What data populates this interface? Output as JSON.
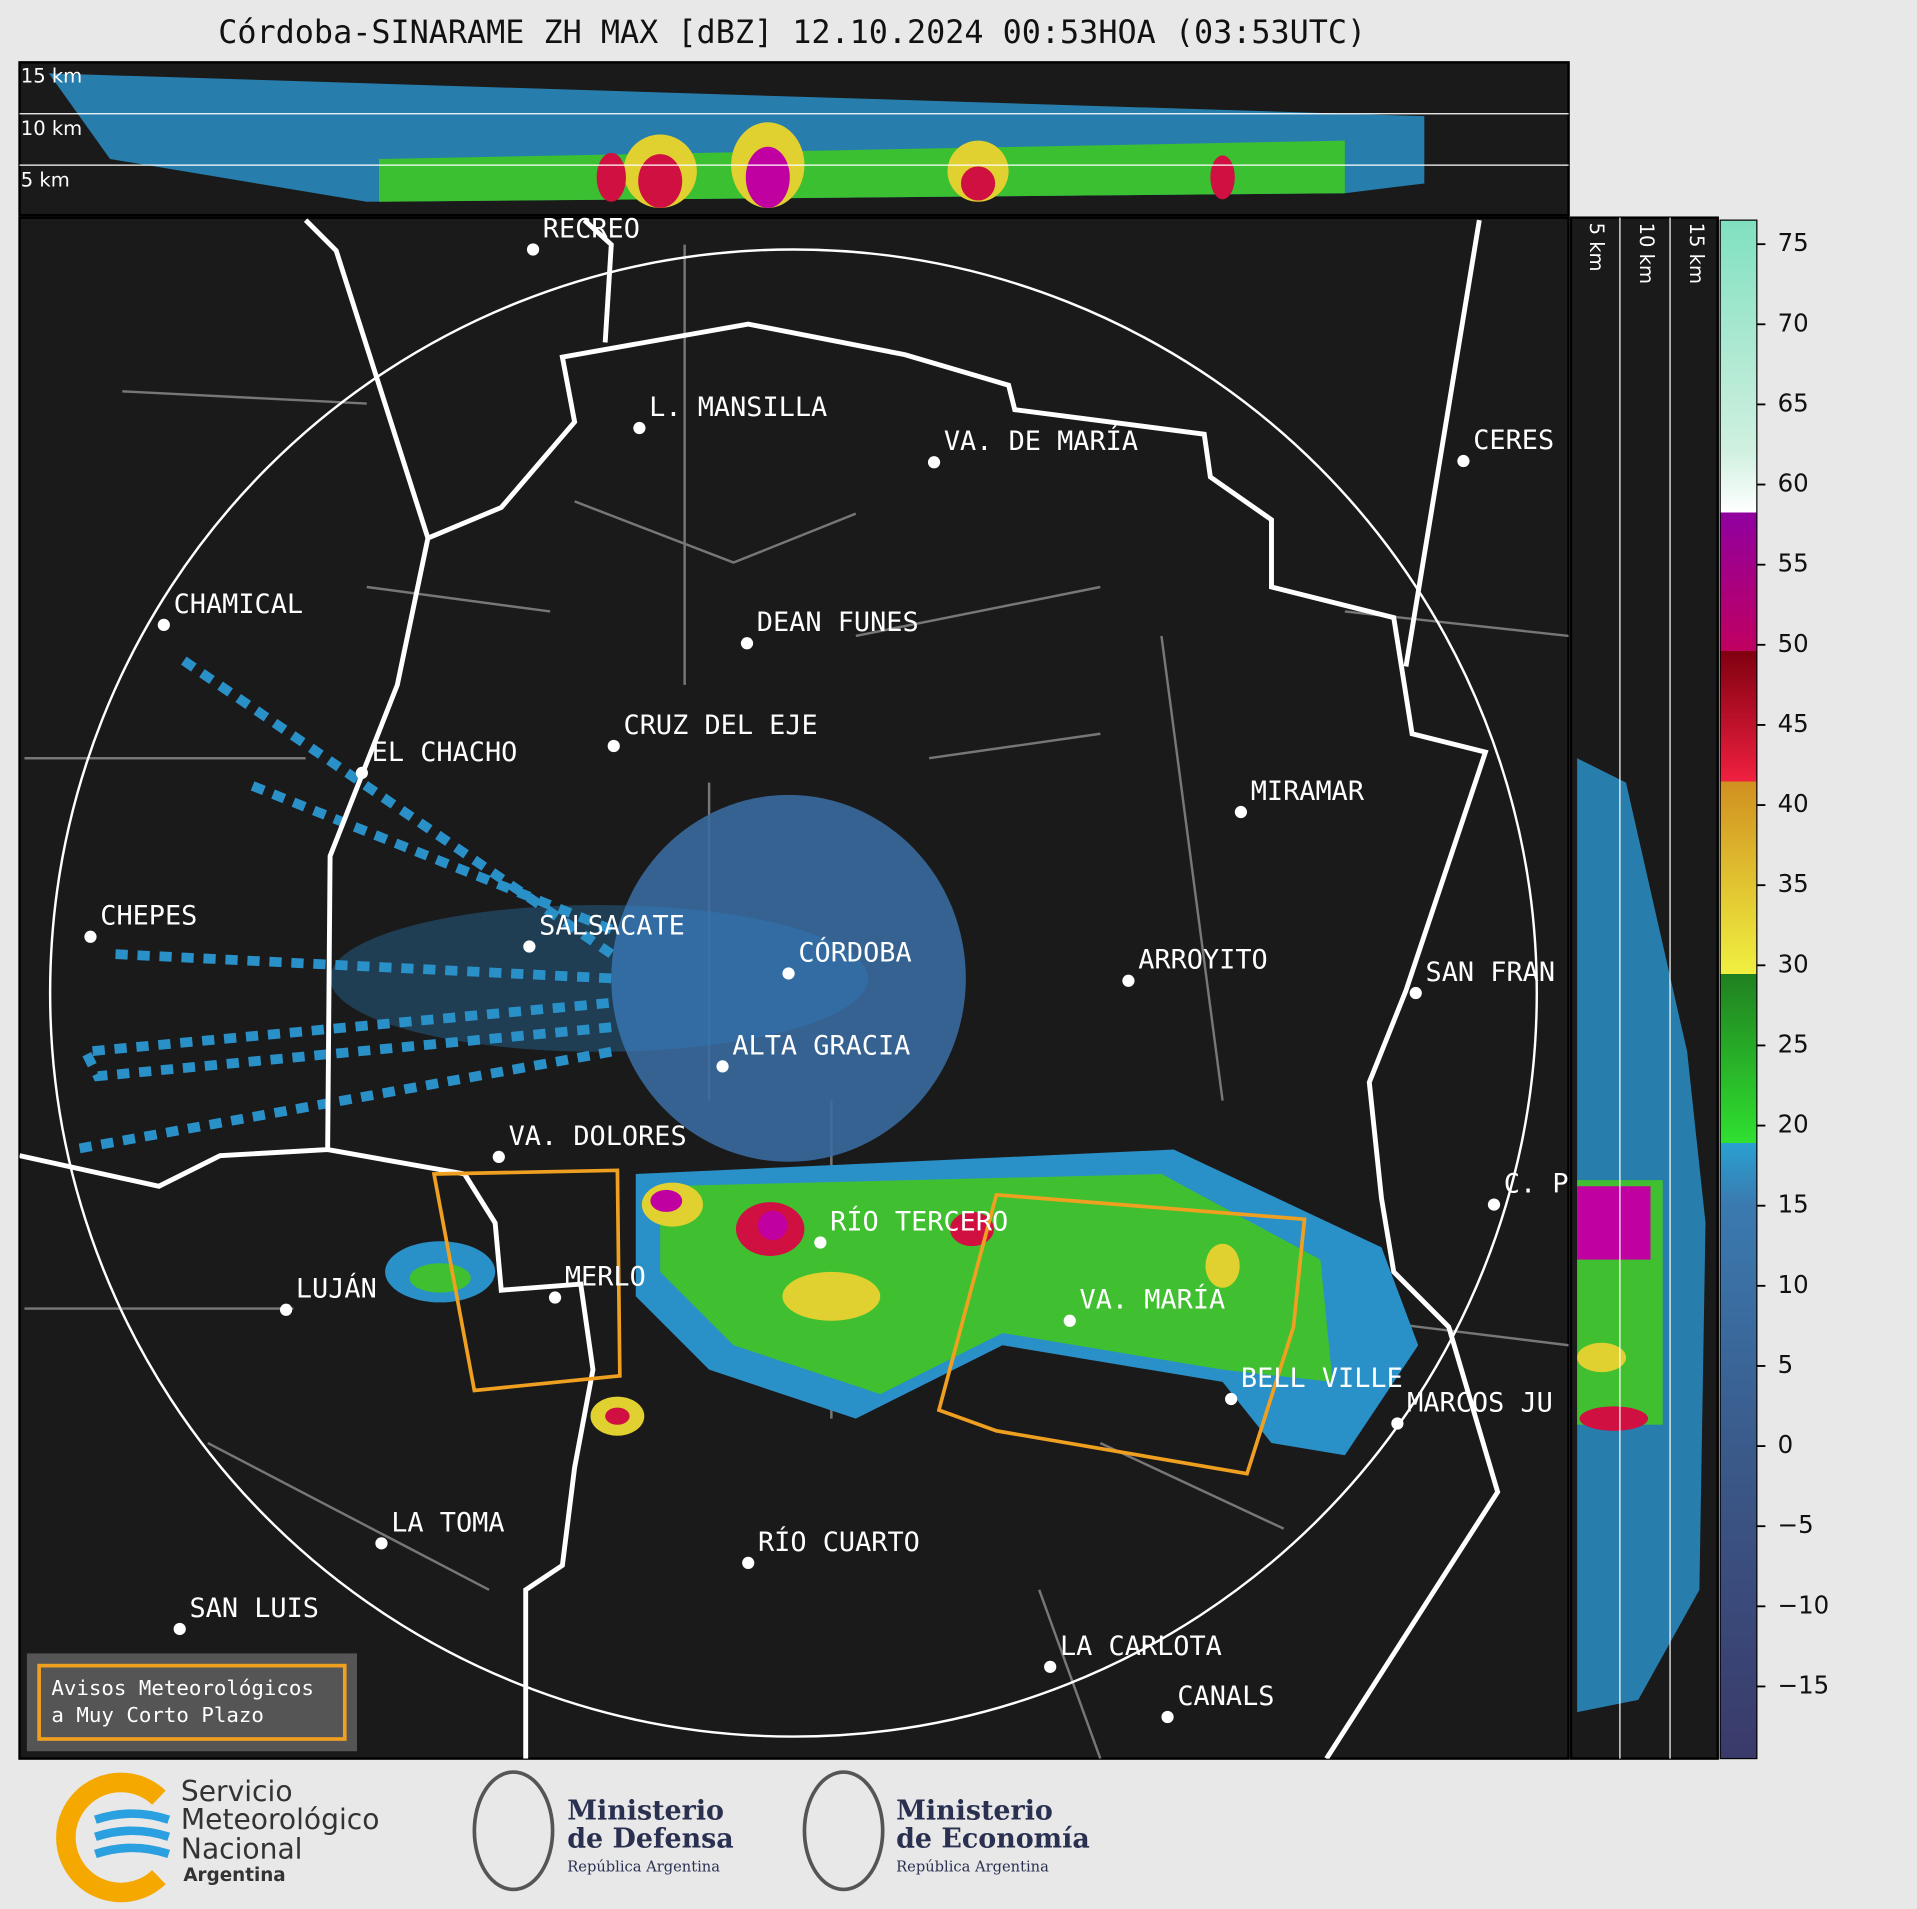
{
  "header": {
    "title": "Córdoba-SINARAME ZH MAX [dBZ] 12.10.2024 00:53HOA (03:53UTC)"
  },
  "top_panel": {
    "height_labels": [
      "15 km",
      "10 km",
      "5 km"
    ]
  },
  "side_panel": {
    "height_labels": [
      "5 km",
      "10 km",
      "15 km"
    ]
  },
  "cities": [
    "RECREO",
    "L. MANSILLA",
    "VA. DE MARÍA",
    "CERES",
    "CHAMICAL",
    "DEAN FUNES",
    "CRUZ DEL EJE",
    "EL CHACHO",
    "MIRAMAR",
    "CHEPES",
    "SALSACATE",
    "CÓRDOBA",
    "ARROYITO",
    "SAN FRAN",
    "ALTA GRACIA",
    "VA. DOLORES",
    "C. P",
    "RÍO TERCERO",
    "LUJÁN",
    "MERLO",
    "VA. MARÍA",
    "BELL VILLE",
    "MARCOS JU",
    "LA TOMA",
    "RÍO CUARTO",
    "SAN LUIS",
    "LA CARLOTA",
    "CANALS"
  ],
  "colorbar": {
    "lim": [
      -19.5,
      76.5
    ],
    "ticks": [
      {
        "value": -15,
        "label": "−15"
      },
      {
        "value": -10,
        "label": "−10"
      },
      {
        "value": -5,
        "label": "−5"
      },
      0,
      5,
      10,
      15,
      20,
      25,
      30,
      35,
      40,
      45,
      50,
      55,
      60,
      65,
      70,
      75
    ]
  },
  "warning_box": {
    "lines": [
      "Avisos Meteorológicos",
      "a Muy Corto Plazo"
    ]
  },
  "footer": {
    "smn": [
      "Servicio",
      "Meteorológico",
      "Nacional",
      "Argentina"
    ],
    "defensa": [
      "Ministerio",
      "de Defensa",
      "República Argentina"
    ],
    "economia": [
      "Ministerio",
      "de Economía",
      "República Argentina"
    ]
  }
}
